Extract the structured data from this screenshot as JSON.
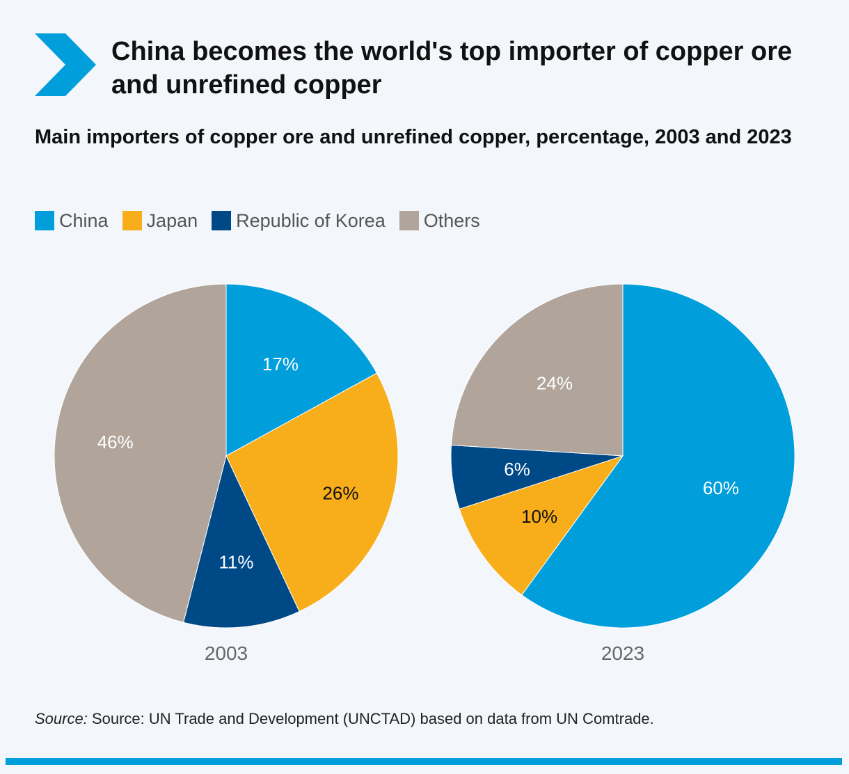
{
  "header": {
    "title": "China becomes the world's top importer of copper ore and unrefined copper",
    "subtitle": "Main importers of copper ore and unrefined copper, percentage, 2003 and 2023"
  },
  "colors": {
    "China": "#009edb",
    "Japan": "#f8ae1a",
    "Republic of Korea": "#004987",
    "Others": "#b0a49b",
    "accent": "#009edb"
  },
  "legend": [
    "China",
    "Japan",
    "Republic of Korea",
    "Others"
  ],
  "chart_data": [
    {
      "type": "pie",
      "label": "2003",
      "slices": [
        {
          "name": "China",
          "value": 17,
          "label": "17%"
        },
        {
          "name": "Japan",
          "value": 26,
          "label": "26%"
        },
        {
          "name": "Republic of Korea",
          "value": 11,
          "label": "11%"
        },
        {
          "name": "Others",
          "value": 46,
          "label": "46%"
        }
      ]
    },
    {
      "type": "pie",
      "label": "2023",
      "slices": [
        {
          "name": "China",
          "value": 60,
          "label": "60%"
        },
        {
          "name": "Japan",
          "value": 10,
          "label": "10%"
        },
        {
          "name": "Republic of Korea",
          "value": 6,
          "label": "6%"
        },
        {
          "name": "Others",
          "value": 24,
          "label": "24%"
        }
      ]
    }
  ],
  "source": {
    "prefix": "Source:",
    "text": "Source: UN Trade and Development (UNCTAD) based on data from UN Comtrade."
  }
}
